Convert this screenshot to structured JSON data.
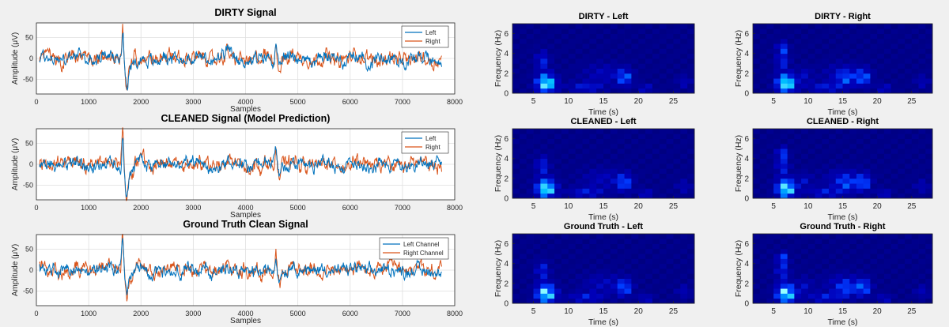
{
  "chart_data": [
    {
      "type": "line",
      "title": "DIRTY Signal",
      "xlabel": "Samples",
      "ylabel": "Amplitude (μV)",
      "xlim": [
        0,
        8000
      ],
      "ylim": [
        -85,
        85
      ],
      "xticks": [
        "0",
        "1000",
        "2000",
        "3000",
        "4000",
        "5000",
        "6000",
        "7000",
        "8000"
      ],
      "yticks": [
        "-50",
        "0",
        "50"
      ],
      "grid": true,
      "legend_position": "top-right",
      "series": [
        {
          "name": "Left",
          "color": "#0072bd"
        },
        {
          "name": "Right",
          "color": "#d95319"
        }
      ]
    },
    {
      "type": "line",
      "title": "CLEANED Signal (Model Prediction)",
      "xlabel": "Samples",
      "ylabel": "Amplitude (μV)",
      "xlim": [
        0,
        8000
      ],
      "ylim": [
        -85,
        85
      ],
      "xticks": [
        "0",
        "1000",
        "2000",
        "3000",
        "4000",
        "5000",
        "6000",
        "7000",
        "8000"
      ],
      "yticks": [
        "-50",
        "0",
        "50"
      ],
      "grid": true,
      "legend_position": "top-right",
      "series": [
        {
          "name": "Left",
          "color": "#0072bd"
        },
        {
          "name": "Right",
          "color": "#d95319"
        }
      ]
    },
    {
      "type": "line",
      "title": "Ground Truth Clean Signal",
      "xlabel": "Samples",
      "ylabel": "Amplitude (μV)",
      "xlim": [
        0,
        8000
      ],
      "ylim": [
        -85,
        85
      ],
      "xticks": [
        "0",
        "1000",
        "2000",
        "3000",
        "4000",
        "5000",
        "6000",
        "7000",
        "8000"
      ],
      "yticks": [
        "-50",
        "0",
        "50"
      ],
      "grid": true,
      "legend_position": "top-right",
      "series": [
        {
          "name": "Left Channel",
          "color": "#0072bd"
        },
        {
          "name": "Right Channel",
          "color": "#d95319"
        }
      ]
    },
    {
      "type": "heatmap",
      "title": "DIRTY - Left",
      "xlabel": "Time (s)",
      "ylabel": "Frequency (Hz)",
      "xlim": [
        2,
        28
      ],
      "ylim": [
        0,
        7
      ],
      "xticks": [
        5,
        10,
        15,
        20,
        25
      ],
      "yticks": [
        0,
        2,
        4,
        6
      ]
    },
    {
      "type": "heatmap",
      "title": "DIRTY - Right",
      "xlabel": "Time (s)",
      "ylabel": "Frequency (Hz)",
      "xlim": [
        2,
        28
      ],
      "ylim": [
        0,
        7
      ],
      "xticks": [
        5,
        10,
        15,
        20,
        25
      ],
      "yticks": [
        0,
        2,
        4,
        6
      ]
    },
    {
      "type": "heatmap",
      "title": "CLEANED - Left",
      "xlabel": "Time (s)",
      "ylabel": "Frequency (Hz)",
      "xlim": [
        2,
        28
      ],
      "ylim": [
        0,
        7
      ],
      "xticks": [
        5,
        10,
        15,
        20,
        25
      ],
      "yticks": [
        0,
        2,
        4,
        6
      ]
    },
    {
      "type": "heatmap",
      "title": "CLEANED - Right",
      "xlabel": "Time (s)",
      "ylabel": "Frequency (Hz)",
      "xlim": [
        2,
        28
      ],
      "ylim": [
        0,
        7
      ],
      "xticks": [
        5,
        10,
        15,
        20,
        25
      ],
      "yticks": [
        0,
        2,
        4,
        6
      ]
    },
    {
      "type": "heatmap",
      "title": "Ground Truth - Left",
      "xlabel": "Time (s)",
      "ylabel": "Frequency (Hz)",
      "xlim": [
        2,
        28
      ],
      "ylim": [
        0,
        7
      ],
      "xticks": [
        5,
        10,
        15,
        20,
        25
      ],
      "yticks": [
        0,
        2,
        4,
        6
      ]
    },
    {
      "type": "heatmap",
      "title": "Ground Truth - Right",
      "xlabel": "Time (s)",
      "ylabel": "Frequency (Hz)",
      "xlim": [
        2,
        28
      ],
      "ylim": [
        0,
        7
      ],
      "xticks": [
        5,
        10,
        15,
        20,
        25
      ],
      "yticks": [
        0,
        2,
        4,
        6
      ]
    }
  ]
}
